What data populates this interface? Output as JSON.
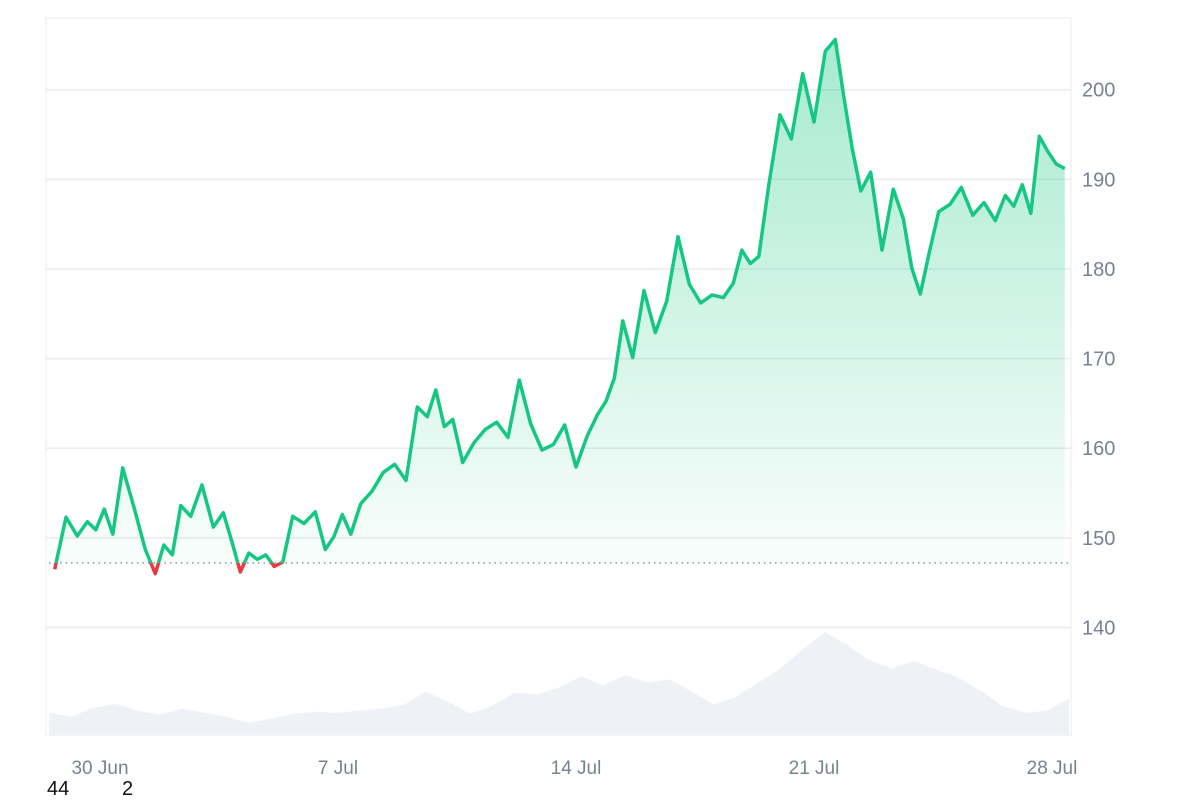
{
  "chart_data": {
    "type": "area",
    "title": "",
    "xlabel": "",
    "ylabel": "",
    "x_range": [
      "2024-06-29",
      "2024-07-28"
    ],
    "x_ticks": [
      "30 Jun",
      "7 Jul",
      "14 Jul",
      "21 Jul",
      "28 Jul"
    ],
    "y_ticks": [
      "140",
      "150",
      "160",
      "170",
      "180",
      "190",
      "200"
    ],
    "ylim": [
      128,
      208
    ],
    "baseline": 147.2,
    "grid": true,
    "legend": "none",
    "colors": {
      "up": "#16c784",
      "down": "#ea3943",
      "fill": "#16c784",
      "volume": "#eef1f5",
      "grid": "#e8ebef",
      "axis_text": "#758296",
      "baseline": "#8a93a0"
    },
    "series": [
      {
        "x": [
          "2024-06-29",
          "2024-06-29",
          "2024-06-29",
          "2024-06-30",
          "2024-06-30",
          "2024-06-30",
          "2024-06-30",
          "2024-07-01",
          "2024-07-01",
          "2024-07-01",
          "2024-07-02",
          "2024-07-02",
          "2024-07-02",
          "2024-07-02",
          "2024-07-03",
          "2024-07-03",
          "2024-07-03",
          "2024-07-04",
          "2024-07-04",
          "2024-07-04",
          "2024-07-04",
          "2024-07-05",
          "2024-07-05",
          "2024-07-05",
          "2024-07-05",
          "2024-07-06",
          "2024-07-06",
          "2024-07-06",
          "2024-07-07",
          "2024-07-07",
          "2024-07-07",
          "2024-07-07",
          "2024-07-08",
          "2024-07-08",
          "2024-07-08",
          "2024-07-09",
          "2024-07-09",
          "2024-07-09",
          "2024-07-10",
          "2024-07-10",
          "2024-07-10",
          "2024-07-10",
          "2024-07-11",
          "2024-07-11",
          "2024-07-11",
          "2024-07-12",
          "2024-07-12",
          "2024-07-12",
          "2024-07-13",
          "2024-07-13",
          "2024-07-13",
          "2024-07-14",
          "2024-07-14",
          "2024-07-14",
          "2024-07-15",
          "2024-07-15",
          "2024-07-15",
          "2024-07-15",
          "2024-07-16",
          "2024-07-16",
          "2024-07-16",
          "2024-07-17",
          "2024-07-17",
          "2024-07-17",
          "2024-07-18",
          "2024-07-18",
          "2024-07-18",
          "2024-07-19",
          "2024-07-19",
          "2024-07-19",
          "2024-07-19",
          "2024-07-20",
          "2024-07-20",
          "2024-07-20",
          "2024-07-21",
          "2024-07-21",
          "2024-07-21",
          "2024-07-22",
          "2024-07-22",
          "2024-07-22",
          "2024-07-22",
          "2024-07-23",
          "2024-07-23",
          "2024-07-23",
          "2024-07-24",
          "2024-07-24",
          "2024-07-24",
          "2024-07-24",
          "2024-07-25",
          "2024-07-25",
          "2024-07-25",
          "2024-07-26",
          "2024-07-26",
          "2024-07-26",
          "2024-07-27",
          "2024-07-27",
          "2024-07-27",
          "2024-07-27",
          "2024-07-28",
          "2024-07-28",
          "2024-07-28",
          "2024-07-28"
        ],
        "y": [
          146.5,
          152.3,
          150.2,
          151.8,
          150.9,
          153.2,
          150.4,
          157.8,
          153.4,
          148.7,
          146.0,
          149.2,
          148.1,
          153.6,
          152.4,
          155.9,
          151.2,
          152.8,
          149.6,
          146.2,
          148.3,
          147.6,
          148.1,
          146.8,
          147.3,
          152.4,
          151.6,
          152.9,
          148.7,
          150.1,
          152.6,
          150.4,
          153.8,
          155.2,
          157.3,
          158.2,
          156.4,
          164.6,
          163.5,
          166.5,
          162.4,
          163.2,
          158.4,
          160.6,
          162.1,
          162.9,
          161.2,
          167.6,
          162.7,
          159.8,
          160.4,
          162.6,
          157.9,
          161.4,
          163.7,
          165.2,
          167.8,
          174.2,
          170.1,
          177.6,
          172.9,
          176.4,
          183.6,
          178.3,
          176.2,
          177.1,
          176.8,
          178.4,
          182.1,
          180.6,
          181.4,
          189.3,
          197.2,
          194.5,
          201.8,
          196.4,
          204.3,
          205.6,
          199.2,
          193.4,
          188.7,
          190.8,
          182.1,
          188.9,
          185.6,
          180.1,
          177.2,
          181.6,
          186.4,
          187.2,
          189.1,
          186.0,
          187.4,
          185.4,
          188.2,
          187.0,
          189.4,
          186.2,
          194.8,
          193.1,
          191.7,
          191.2
        ]
      }
    ],
    "volume": [
      22,
      18,
      27,
      31,
      24,
      20,
      26,
      22,
      18,
      12,
      16,
      21,
      23,
      22,
      24,
      26,
      30,
      43,
      33,
      21,
      29,
      42,
      40,
      47,
      58,
      49,
      59,
      52,
      55,
      43,
      30,
      38,
      52,
      66,
      85,
      102,
      89,
      74,
      66,
      73,
      65,
      57,
      44,
      29,
      22,
      24,
      36
    ]
  },
  "extra_labels": {
    "left": "44",
    "right": "2"
  }
}
